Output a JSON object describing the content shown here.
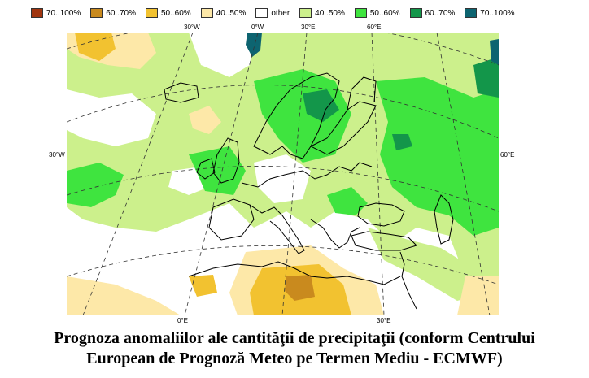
{
  "legend": [
    {
      "label": "70..100%",
      "color": "#a0350f"
    },
    {
      "label": "60..70%",
      "color": "#c98a1e"
    },
    {
      "label": "50..60%",
      "color": "#f2c230"
    },
    {
      "label": "40..50%",
      "color": "#fde8a8"
    },
    {
      "label": "other",
      "color": "#ffffff"
    },
    {
      "label": "40..50%",
      "color": "#ccf08c"
    },
    {
      "label": "50..60%",
      "color": "#3fe43f"
    },
    {
      "label": "60..70%",
      "color": "#13964a"
    },
    {
      "label": "70..100%",
      "color": "#0d6470"
    }
  ],
  "graticule_labels": {
    "top": [
      "30°W",
      "0°W",
      "30°E",
      "60°E"
    ],
    "left": "30°W",
    "right": "60°E",
    "bottom": [
      "0°E",
      "30°E"
    ]
  },
  "caption": {
    "line1": "Prognoza anomaliilor ale cantităţii de precipitaţii (conform Centrului",
    "line2": "European de Prognoză Meteo pe Termen Mediu - ECMWF)"
  }
}
